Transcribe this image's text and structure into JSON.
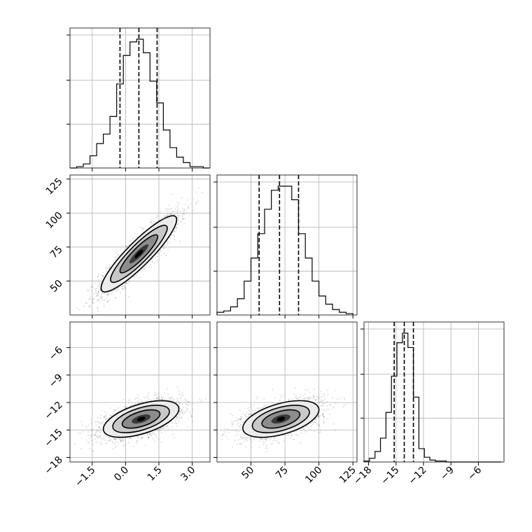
{
  "chart_data": {
    "type": "corner",
    "grid": true,
    "parameters": [
      {
        "id": "p0",
        "range": [
          -2.5,
          3.8
        ],
        "ticks": [
          -1.5,
          0.0,
          1.5,
          3.0
        ],
        "tick_labels": [
          "−1.5",
          "0.0",
          "1.5",
          "3.0"
        ],
        "quantiles": [
          -0.25,
          0.6,
          1.42
        ],
        "hist_bins": [
          -2.5,
          -2.2,
          -1.9,
          -1.6,
          -1.3,
          -1.0,
          -0.7,
          -0.4,
          -0.1,
          0.2,
          0.5,
          0.8,
          1.1,
          1.4,
          1.7,
          2.0,
          2.3,
          2.6,
          2.9,
          3.2,
          3.5,
          3.8
        ],
        "hist_counts": [
          0,
          1,
          3,
          9,
          18,
          25,
          38,
          62,
          83,
          93,
          95,
          85,
          64,
          48,
          28,
          15,
          8,
          4,
          1,
          1,
          0
        ]
      },
      {
        "id": "p1",
        "range": [
          25,
          128
        ],
        "ticks": [
          50,
          75,
          100,
          125
        ],
        "tick_labels": [
          "50",
          "75",
          "100",
          "125"
        ],
        "quantiles": [
          56,
          71,
          85
        ],
        "hist_bins": [
          25,
          30,
          35,
          40,
          45,
          50,
          55,
          60,
          65,
          70,
          75,
          80,
          85,
          90,
          95,
          100,
          105,
          110,
          115,
          120,
          125
        ],
        "hist_counts": [
          2,
          3,
          6,
          12,
          25,
          42,
          60,
          78,
          92,
          95,
          95,
          85,
          60,
          42,
          25,
          14,
          8,
          4,
          2,
          1
        ]
      },
      {
        "id": "p2",
        "range": [
          -18.5,
          -3.2
        ],
        "ticks": [
          -18,
          -15,
          -12,
          -9,
          -6
        ],
        "tick_labels": [
          "−18",
          "−15",
          "−12",
          "−9",
          "−6"
        ],
        "quantiles": [
          -15.2,
          -14.1,
          -13.1
        ],
        "hist_bins": [
          -18.5,
          -17.9,
          -17.3,
          -16.7,
          -16.1,
          -15.5,
          -14.9,
          -14.3,
          -13.7,
          -13.1,
          -12.5,
          -11.9,
          -11.3,
          -10.7,
          -10.1,
          -9.5,
          -8.9,
          -8.3,
          -7.7,
          -7.1,
          -6.5,
          -5.9,
          -5.3,
          -4.7,
          -4.1,
          -3.5
        ],
        "hist_counts": [
          1,
          4,
          11,
          25,
          52,
          90,
          125,
          135,
          120,
          68,
          14,
          5,
          2,
          1,
          1,
          0,
          0,
          0,
          0,
          0,
          0,
          0,
          0,
          0,
          0
        ]
      }
    ],
    "pairs": [
      {
        "x": "p0",
        "y": "p1",
        "mean": [
          0.6,
          70.0
        ],
        "std": [
          0.85,
          14.0
        ],
        "corr": 0.9
      },
      {
        "x": "p0",
        "y": "p2",
        "mean": [
          0.7,
          -13.8
        ],
        "std": [
          0.85,
          1.0
        ],
        "corr": 0.55
      },
      {
        "x": "p1",
        "y": "p2",
        "mean": [
          72.0,
          -13.8
        ],
        "std": [
          14.0,
          1.0
        ],
        "corr": 0.5
      }
    ]
  }
}
